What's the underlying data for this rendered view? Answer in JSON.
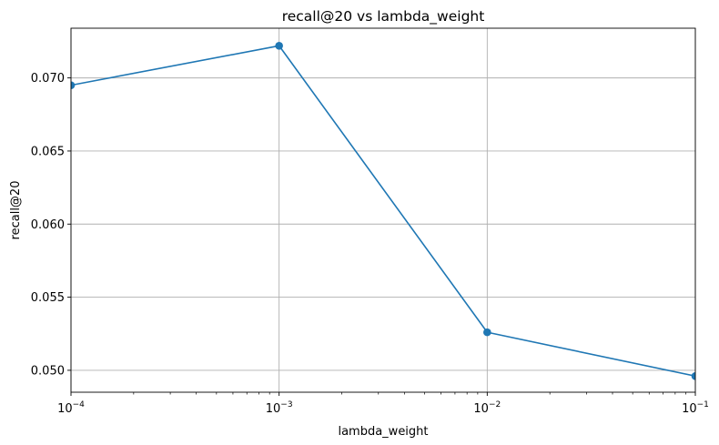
{
  "chart_data": {
    "type": "line",
    "title": "recall@20 vs lambda_weight",
    "xlabel": "lambda_weight",
    "ylabel": "recall@20",
    "x_scale": "log",
    "x": [
      0.0001,
      0.001,
      0.01,
      0.1
    ],
    "xlim": [
      0.0001,
      0.1
    ],
    "ylim": [
      0.0485,
      0.0734
    ],
    "x_ticks": [
      {
        "value": 0.0001,
        "base": "10",
        "exp": "−4"
      },
      {
        "value": 0.001,
        "base": "10",
        "exp": "−3"
      },
      {
        "value": 0.01,
        "base": "10",
        "exp": "−2"
      },
      {
        "value": 0.1,
        "base": "10",
        "exp": "−1"
      }
    ],
    "y_ticks": [
      {
        "value": 0.05,
        "label": "0.050"
      },
      {
        "value": 0.055,
        "label": "0.055"
      },
      {
        "value": 0.06,
        "label": "0.060"
      },
      {
        "value": 0.065,
        "label": "0.065"
      },
      {
        "value": 0.07,
        "label": "0.070"
      }
    ],
    "series": [
      {
        "values": [
          0.0695,
          0.0722,
          0.0526,
          0.0496
        ],
        "color": "#1f77b4",
        "marker": "circle"
      }
    ],
    "grid": true,
    "legend": "none"
  }
}
